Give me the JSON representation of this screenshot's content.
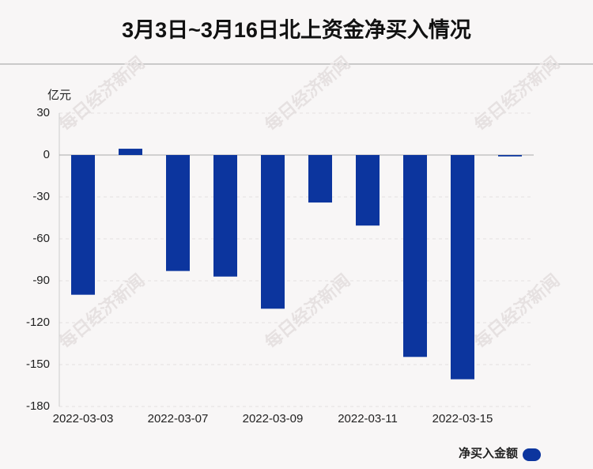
{
  "chart_data": {
    "type": "bar",
    "title": "3月3日~3月16日北上资金净买入情况",
    "y_unit": "亿元",
    "watermark": "每日经济新闻",
    "categories": [
      "2022-03-03",
      null,
      "2022-03-07",
      null,
      "2022-03-09",
      null,
      "2022-03-11",
      null,
      "2022-03-15",
      null
    ],
    "series": [
      {
        "name": "净买入金额",
        "color": "#0c359e",
        "values": [
          -100,
          4.5,
          -83,
          -87,
          -110,
          -34,
          -50.5,
          -144.5,
          -160.5,
          -1
        ]
      }
    ],
    "ylim": [
      -180,
      30
    ],
    "yticks": [
      -180,
      -150,
      -120,
      -90,
      -60,
      -30,
      0,
      30
    ],
    "grid": true
  }
}
